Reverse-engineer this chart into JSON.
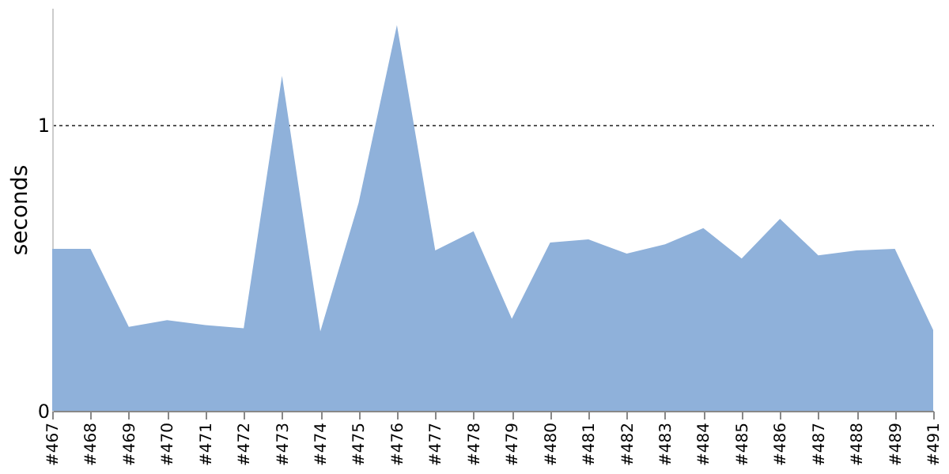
{
  "chart_data": {
    "type": "area",
    "ylabel": "seconds",
    "categories": [
      "#467",
      "#468",
      "#469",
      "#470",
      "#471",
      "#472",
      "#473",
      "#474",
      "#475",
      "#476",
      "#477",
      "#478",
      "#479",
      "#480",
      "#481",
      "#482",
      "#483",
      "#484",
      "#485",
      "#486",
      "#487",
      "#488",
      "#489",
      "#491"
    ],
    "series": [
      {
        "color": "#8fb1da",
        "values": [
          0.567,
          0.567,
          0.294,
          0.317,
          0.3,
          0.289,
          1.172,
          0.278,
          0.728,
          1.35,
          0.561,
          0.628,
          0.322,
          0.589,
          0.6,
          0.55,
          0.583,
          0.639,
          0.533,
          0.672,
          0.544,
          0.561,
          0.567,
          0.283
        ]
      }
    ],
    "ylim": [
      0,
      1.41
    ],
    "yticks": [
      0,
      1
    ],
    "grid": "y"
  }
}
